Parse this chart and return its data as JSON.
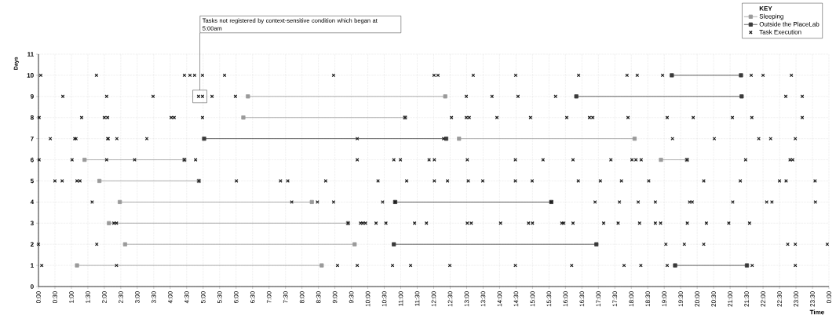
{
  "chart_data": {
    "type": "scatter",
    "xlabel": "Time",
    "ylabel": "Days",
    "legend_title": "KEY",
    "legend": "top right",
    "grid": true,
    "xlim": [
      0,
      24
    ],
    "ylim": [
      0,
      11
    ],
    "yticks": [
      0,
      1,
      2,
      3,
      4,
      5,
      6,
      7,
      8,
      9,
      10,
      11
    ],
    "xticks": [
      {
        "value": 0,
        "label": "0:00"
      },
      {
        "value": 0.5,
        "label": "0:30"
      },
      {
        "value": 1,
        "label": "1:00"
      },
      {
        "value": 1.5,
        "label": "1:30"
      },
      {
        "value": 2,
        "label": "2:00"
      },
      {
        "value": 2.5,
        "label": "2:30"
      },
      {
        "value": 3,
        "label": "3:00"
      },
      {
        "value": 3.5,
        "label": "3:30"
      },
      {
        "value": 4,
        "label": "4:00"
      },
      {
        "value": 4.5,
        "label": "4:30"
      },
      {
        "value": 5,
        "label": "5:00"
      },
      {
        "value": 5.5,
        "label": "5:30"
      },
      {
        "value": 6,
        "label": "6:00"
      },
      {
        "value": 6.5,
        "label": "6:30"
      },
      {
        "value": 7,
        "label": "7:00"
      },
      {
        "value": 7.5,
        "label": "7:30"
      },
      {
        "value": 8,
        "label": "8:00"
      },
      {
        "value": 8.5,
        "label": "8:30"
      },
      {
        "value": 9,
        "label": "9:00"
      },
      {
        "value": 9.5,
        "label": "9:30"
      },
      {
        "value": 10,
        "label": "10:00"
      },
      {
        "value": 10.5,
        "label": "10:30"
      },
      {
        "value": 11,
        "label": "11:00"
      },
      {
        "value": 11.5,
        "label": "11:30"
      },
      {
        "value": 12,
        "label": "12:00"
      },
      {
        "value": 12.5,
        "label": "12:30"
      },
      {
        "value": 13,
        "label": "13:00"
      },
      {
        "value": 13.5,
        "label": "13:30"
      },
      {
        "value": 14,
        "label": "14:00"
      },
      {
        "value": 14.5,
        "label": "14:30"
      },
      {
        "value": 15,
        "label": "15:00"
      },
      {
        "value": 15.5,
        "label": "15:30"
      },
      {
        "value": 16,
        "label": "16:00"
      },
      {
        "value": 16.5,
        "label": "16:30"
      },
      {
        "value": 17,
        "label": "17:00"
      },
      {
        "value": 17.5,
        "label": "17:30"
      },
      {
        "value": 18,
        "label": "18:00"
      },
      {
        "value": 18.5,
        "label": "18:30"
      },
      {
        "value": 19,
        "label": "19:00"
      },
      {
        "value": 19.5,
        "label": "19:30"
      },
      {
        "value": 20,
        "label": "20:00"
      },
      {
        "value": 20.5,
        "label": "20:30"
      },
      {
        "value": 21,
        "label": "21:00"
      },
      {
        "value": 21.5,
        "label": "21:30"
      },
      {
        "value": 22,
        "label": "22:00"
      },
      {
        "value": 22.5,
        "label": "22:30"
      },
      {
        "value": 23,
        "label": "23:00"
      },
      {
        "value": 23.5,
        "label": "23:30"
      },
      {
        "value": 24,
        "label": "0:00"
      }
    ],
    "annotations": [
      {
        "text": "Tasks not registered by context-sensitive condition which began at 5:00am",
        "x": 4.9,
        "y": 9
      }
    ],
    "series": [
      {
        "name": "Sleeping",
        "type": "line",
        "marker": "square",
        "line_style": "solid",
        "color": "#9a9a9a",
        "x": [
          1.17,
          8.6,
          null,
          2.63,
          9.6,
          null,
          2.14,
          9.4,
          null,
          2.47,
          8.3,
          null,
          1.85,
          4.87,
          null,
          1.4,
          4.43,
          null,
          18.9,
          19.69,
          null,
          12.77,
          18.1,
          null,
          6.22,
          11.13,
          null,
          6.36,
          12.35
        ],
        "values": [
          1,
          1,
          null,
          2,
          2,
          null,
          3,
          3,
          null,
          4,
          4,
          null,
          5,
          5,
          null,
          6,
          6,
          null,
          6,
          6,
          null,
          7,
          7,
          null,
          8,
          8,
          null,
          9,
          9
        ]
      },
      {
        "name": "Outside the PlaceLab",
        "type": "line",
        "marker": "square",
        "line_style": "solid",
        "color": "#3a3a3a",
        "x": [
          19.33,
          21.51,
          null,
          10.79,
          16.94,
          null,
          10.83,
          15.57,
          null,
          5.03,
          12.38,
          null,
          16.33,
          21.35,
          null,
          19.23,
          21.33
        ],
        "values": [
          1,
          1,
          null,
          2,
          2,
          null,
          4,
          4,
          null,
          7,
          7,
          null,
          9,
          9,
          null,
          10,
          10
        ]
      },
      {
        "name": "Task Execution",
        "marker": "cross",
        "color": "#1a1a1a",
        "x": [
          0.1,
          2.37,
          9.08,
          9.68,
          10.75,
          11.3,
          12.49,
          14.48,
          16.19,
          17.78,
          18.29,
          19.09,
          21.67,
          22.98,
          0,
          1.77,
          19.05,
          19.61,
          20.2,
          22.75,
          22.98,
          23.95,
          2.29,
          2.37,
          9.4,
          9.78,
          9.85,
          9.93,
          10.25,
          10.55,
          11.42,
          11.78,
          13.02,
          13.14,
          14.03,
          14.88,
          15.0,
          15.89,
          15.95,
          16.23,
          17.16,
          17.6,
          18.25,
          18.73,
          18.89,
          19.7,
          20.28,
          20.96,
          21.59,
          1.63,
          7.69,
          8.47,
          8.96,
          10.45,
          10.83,
          15.57,
          16.9,
          17.64,
          18.21,
          18.73,
          19.77,
          19.85,
          21.08,
          22.11,
          22.27,
          23.59,
          0.5,
          0.72,
          1.17,
          1.26,
          4.87,
          6.01,
          7.35,
          7.57,
          8.72,
          10.31,
          11.18,
          12.02,
          12.42,
          13.05,
          13.49,
          14.48,
          14.99,
          16.39,
          17.06,
          17.7,
          18.53,
          20.2,
          21.31,
          22.5,
          22.7,
          23.58,
          0.02,
          1.02,
          2.07,
          2.92,
          4.43,
          4.77,
          9.68,
          10.79,
          10.99,
          11.86,
          12.02,
          13.02,
          14.48,
          15.32,
          16.23,
          17.38,
          18.02,
          18.14,
          18.3,
          19.69,
          21.47,
          22.82,
          22.9,
          0.36,
          1.1,
          1.14,
          2.1,
          2.12,
          2.38,
          3.29,
          9.68,
          12.3,
          19.25,
          20.52,
          21.87,
          22.23,
          22.98,
          0.02,
          1.31,
          2.0,
          2.1,
          4.03,
          4.12,
          4.98,
          11.13,
          12.54,
          12.99,
          13.08,
          13.92,
          14.94,
          16.04,
          16.73,
          16.83,
          17.9,
          19.09,
          19.88,
          21.07,
          21.66,
          23.19,
          0.74,
          2.07,
          3.48,
          4.86,
          4.98,
          5.27,
          5.98,
          12.99,
          13.77,
          14.56,
          15.7,
          22.69,
          23.19,
          0.07,
          1.76,
          4.43,
          4.6,
          4.74,
          4.98,
          5.65,
          8.96,
          12.01,
          12.13,
          13.2,
          14.49,
          16.4,
          17.87,
          18.18,
          18.95,
          21.64,
          22.0,
          22.86
        ],
        "values": [
          1,
          1,
          1,
          1,
          1,
          1,
          1,
          1,
          1,
          1,
          1,
          1,
          1,
          1,
          2,
          2,
          2,
          2,
          2,
          2,
          2,
          2,
          3,
          3,
          3,
          3,
          3,
          3,
          3,
          3,
          3,
          3,
          3,
          3,
          3,
          3,
          3,
          3,
          3,
          3,
          3,
          3,
          3,
          3,
          3,
          3,
          3,
          3,
          3,
          4,
          4,
          4,
          4,
          4,
          4,
          4,
          4,
          4,
          4,
          4,
          4,
          4,
          4,
          4,
          4,
          4,
          5,
          5,
          5,
          5,
          5,
          5,
          5,
          5,
          5,
          5,
          5,
          5,
          5,
          5,
          5,
          5,
          5,
          5,
          5,
          5,
          5,
          5,
          5,
          5,
          5,
          5,
          6,
          6,
          6,
          6,
          6,
          6,
          6,
          6,
          6,
          6,
          6,
          6,
          6,
          6,
          6,
          6,
          6,
          6,
          6,
          6,
          6,
          6,
          6,
          7,
          7,
          7,
          7,
          7,
          7,
          7,
          7,
          7,
          7,
          7,
          7,
          7,
          7,
          8,
          8,
          8,
          8,
          8,
          8,
          8,
          8,
          8,
          8,
          8,
          8,
          8,
          8,
          8,
          8,
          8,
          8,
          8,
          8,
          8,
          8,
          9,
          9,
          9,
          9,
          9,
          9,
          9,
          9,
          9,
          9,
          9,
          9,
          9,
          10,
          10,
          10,
          10,
          10,
          10,
          10,
          10,
          10,
          10,
          10,
          10,
          10,
          10,
          10,
          10,
          10,
          10,
          10
        ]
      }
    ]
  }
}
